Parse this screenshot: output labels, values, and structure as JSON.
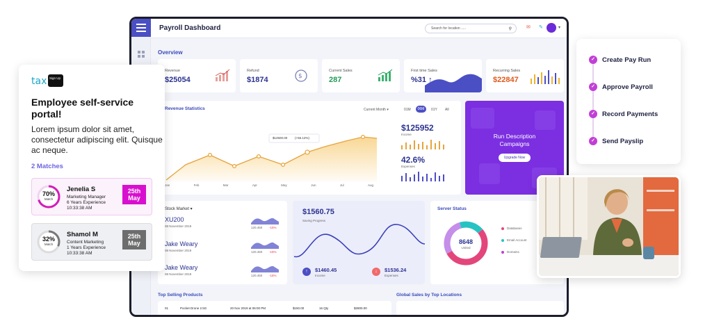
{
  "dashboard": {
    "title": "Payroll Dashboard",
    "search_placeholder": "Search for location .....",
    "overview_label": "Overview",
    "kpis": [
      {
        "label": "Revenue",
        "value": "$25054"
      },
      {
        "label": "Refund",
        "value": "$1874"
      },
      {
        "label": "Current Sales",
        "value": "287"
      },
      {
        "label": "First time Sales",
        "value": "%31 ↑"
      },
      {
        "label": "Recurring Sales",
        "value": "$22847"
      }
    ],
    "revenue_stats": {
      "title": "Revenue Statistics",
      "filter": "Current Month ▾",
      "periods": [
        "01M",
        "06M",
        "01Y",
        "All"
      ],
      "months": [
        "Jan",
        "Feb",
        "Mar",
        "Apr",
        "May",
        "Jun",
        "Jul",
        "Aug"
      ],
      "tooltip_value": "$12500.00",
      "tooltip_change": "(+56.12%)",
      "income_value": "$125952",
      "income_label": "Income",
      "expenses_value": "42.6%",
      "expenses_label": "Expenses"
    },
    "promo": {
      "title": "Run Description Campaigns",
      "button": "Upgrade Now"
    },
    "stock_market": {
      "title": "Stock Market ▾",
      "rows": [
        {
          "name": "XU200",
          "date": "08 November 2019",
          "value": "120.450",
          "change": "-15%"
        },
        {
          "name": "Jake Weary",
          "date": "08 November 2019",
          "value": "120.450",
          "change": "-15%"
        },
        {
          "name": "Jake Weary",
          "date": "08 November 2019",
          "value": "120.450",
          "change": "-15%"
        }
      ]
    },
    "savings": {
      "value": "$1560.75",
      "label": "Saving Progress",
      "income_value": "$1460.45",
      "income_label": "Income",
      "expenses_value": "$1536.24",
      "expenses_label": "Expenses"
    },
    "server_status": {
      "title": "Server Status",
      "center_value": "8648",
      "center_label": "United",
      "legend": [
        "Databases",
        "Email Account",
        "Domains"
      ]
    },
    "top_products": {
      "title": "Top Selling Products",
      "row": [
        "01",
        "Pocket Drone 2.5G",
        "20 Nov 2019 at 06:00 PM",
        "$150.00",
        "16 Qty",
        "$2800.00"
      ]
    },
    "global_sales": {
      "title": "Global Sales by Top Locations"
    }
  },
  "employee_card": {
    "logo_text": "tax",
    "logo_badge": "Sign Up",
    "title": "Employee self-service portal!",
    "description": "Lorem ipsum dolor sit amet, consectetur adipiscing elit. Quisque ac neque.",
    "matches_label": "2 Matches",
    "matches": [
      {
        "percent": "70%",
        "percent_label": "Match",
        "name": "Jenelia S",
        "role": "Marketing Manager",
        "experience": "6 Years Experience",
        "time": "10:33:38 AM",
        "date_day": "25th",
        "date_month": "May"
      },
      {
        "percent": "32%",
        "percent_label": "Match",
        "name": "Shamol M",
        "role": "Content Marketing",
        "experience": "1 Years Experience",
        "time": "10:33:38 AM",
        "date_day": "25th",
        "date_month": "May"
      }
    ]
  },
  "steps": [
    {
      "label": "Create Pay Run"
    },
    {
      "label": "Approve Payroll"
    },
    {
      "label": "Record Payments"
    },
    {
      "label": "Send Payslip"
    }
  ],
  "colors": {
    "accent": "#4b4fc4",
    "purple": "#7b2fe0",
    "magenta": "#c13fd6",
    "orange": "#e6a33c"
  }
}
